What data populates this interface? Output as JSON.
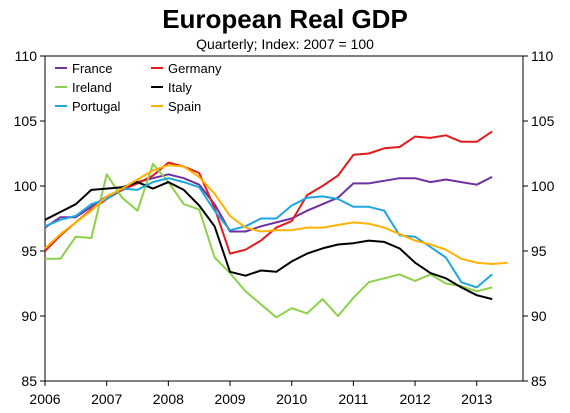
{
  "chart_data": {
    "type": "line",
    "title": "European Real GDP",
    "subtitle": "Quarterly; Index: 2007 = 100",
    "xlabel": "",
    "ylabel": "",
    "xlim": [
      2006,
      2013.75
    ],
    "ylim": [
      85,
      110
    ],
    "x_ticks": [
      "2006",
      "2007",
      "2008",
      "2009",
      "2010",
      "2011",
      "2012",
      "2013"
    ],
    "y_ticks": [
      "85",
      "90",
      "95",
      "100",
      "105",
      "110"
    ],
    "grid": false,
    "legend_position": "top-left",
    "series": [
      {
        "name": "France",
        "color": "#7030A0",
        "x": [
          2006.0,
          2006.25,
          2006.5,
          2006.75,
          2007.0,
          2007.25,
          2007.5,
          2007.75,
          2008.0,
          2008.25,
          2008.5,
          2008.75,
          2009.0,
          2009.25,
          2009.5,
          2009.75,
          2010.0,
          2010.25,
          2010.5,
          2010.75,
          2011.0,
          2011.25,
          2011.5,
          2011.75,
          2012.0,
          2012.25,
          2012.5,
          2012.75,
          2013.0,
          2013.25
        ],
        "values": [
          96.8,
          97.6,
          97.6,
          98.4,
          99.2,
          99.7,
          100.3,
          100.6,
          100.9,
          100.6,
          100.1,
          98.6,
          96.5,
          96.5,
          96.9,
          97.2,
          97.5,
          98.1,
          98.6,
          99.1,
          100.2,
          100.2,
          100.4,
          100.6,
          100.6,
          100.3,
          100.5,
          100.3,
          100.1,
          100.7
        ]
      },
      {
        "name": "Germany",
        "color": "#E41A1C",
        "x": [
          2006.0,
          2006.25,
          2006.5,
          2006.75,
          2007.0,
          2007.25,
          2007.5,
          2007.75,
          2008.0,
          2008.25,
          2008.5,
          2008.75,
          2009.0,
          2009.25,
          2009.5,
          2009.75,
          2010.0,
          2010.25,
          2010.5,
          2010.75,
          2011.0,
          2011.25,
          2011.5,
          2011.75,
          2012.0,
          2012.25,
          2012.5,
          2012.75,
          2013.0,
          2013.25
        ],
        "values": [
          95.0,
          96.2,
          97.2,
          98.2,
          99.0,
          99.7,
          100.2,
          100.8,
          101.8,
          101.5,
          101.0,
          98.3,
          94.8,
          95.1,
          95.8,
          96.8,
          97.3,
          99.3,
          100.0,
          100.8,
          102.4,
          102.5,
          102.9,
          103.0,
          103.8,
          103.7,
          103.9,
          103.4,
          103.4,
          104.2
        ]
      },
      {
        "name": "Ireland",
        "color": "#8DD04A",
        "x": [
          2006.0,
          2006.25,
          2006.5,
          2006.75,
          2007.0,
          2007.25,
          2007.5,
          2007.75,
          2008.0,
          2008.25,
          2008.5,
          2008.75,
          2009.0,
          2009.25,
          2009.5,
          2009.75,
          2010.0,
          2010.25,
          2010.5,
          2010.75,
          2011.0,
          2011.25,
          2011.5,
          2011.75,
          2012.0,
          2012.25,
          2012.5,
          2012.75,
          2013.0,
          2013.25
        ],
        "values": [
          94.4,
          94.4,
          96.1,
          96.0,
          100.9,
          99.1,
          98.1,
          101.7,
          100.3,
          98.6,
          98.2,
          94.5,
          93.3,
          91.9,
          90.9,
          89.9,
          90.6,
          90.2,
          91.3,
          90.0,
          91.4,
          92.6,
          92.9,
          93.2,
          92.7,
          93.2,
          92.5,
          92.3,
          91.9,
          92.2
        ]
      },
      {
        "name": "Italy",
        "color": "#000000",
        "x": [
          2006.0,
          2006.25,
          2006.5,
          2006.75,
          2007.0,
          2007.25,
          2007.5,
          2007.75,
          2008.0,
          2008.25,
          2008.5,
          2008.75,
          2009.0,
          2009.25,
          2009.5,
          2009.75,
          2010.0,
          2010.25,
          2010.5,
          2010.75,
          2011.0,
          2011.25,
          2011.5,
          2011.75,
          2012.0,
          2012.25,
          2012.5,
          2012.75,
          2013.0,
          2013.25
        ],
        "values": [
          97.4,
          98.0,
          98.6,
          99.7,
          99.8,
          99.9,
          100.3,
          99.8,
          100.3,
          99.7,
          98.5,
          96.9,
          93.4,
          93.1,
          93.5,
          93.4,
          94.2,
          94.8,
          95.2,
          95.5,
          95.6,
          95.8,
          95.7,
          95.2,
          94.1,
          93.3,
          92.9,
          92.2,
          91.6,
          91.3
        ]
      },
      {
        "name": "Portugal",
        "color": "#1FA6E0",
        "x": [
          2006.0,
          2006.25,
          2006.5,
          2006.75,
          2007.0,
          2007.25,
          2007.5,
          2007.75,
          2008.0,
          2008.25,
          2008.5,
          2008.75,
          2009.0,
          2009.25,
          2009.5,
          2009.75,
          2010.0,
          2010.25,
          2010.5,
          2010.75,
          2011.0,
          2011.25,
          2011.5,
          2011.75,
          2012.0,
          2012.25,
          2012.5,
          2012.75,
          2013.0,
          2013.25
        ],
        "values": [
          96.9,
          97.4,
          97.7,
          98.6,
          99.0,
          99.8,
          99.7,
          100.3,
          100.6,
          100.3,
          99.9,
          98.1,
          96.6,
          96.9,
          97.5,
          97.5,
          98.5,
          99.1,
          99.2,
          99.0,
          98.4,
          98.4,
          98.1,
          96.2,
          96.1,
          95.3,
          94.5,
          92.6,
          92.2,
          93.2
        ]
      },
      {
        "name": "Spain",
        "color": "#FFB300",
        "x": [
          2006.0,
          2006.25,
          2006.5,
          2006.75,
          2007.0,
          2007.25,
          2007.5,
          2007.75,
          2008.0,
          2008.25,
          2008.5,
          2008.75,
          2009.0,
          2009.25,
          2009.5,
          2009.75,
          2010.0,
          2010.25,
          2010.5,
          2010.75,
          2011.0,
          2011.25,
          2011.5,
          2011.75,
          2012.0,
          2012.25,
          2012.5,
          2012.75,
          2013.0,
          2013.25,
          2013.5
        ],
        "values": [
          95.2,
          96.3,
          97.2,
          98.1,
          99.2,
          99.8,
          100.5,
          101.2,
          101.6,
          101.5,
          100.7,
          99.4,
          97.7,
          96.8,
          96.5,
          96.6,
          96.6,
          96.8,
          96.8,
          97.0,
          97.2,
          97.1,
          96.8,
          96.3,
          95.8,
          95.5,
          95.1,
          94.4,
          94.1,
          94.0,
          94.1
        ]
      }
    ]
  }
}
